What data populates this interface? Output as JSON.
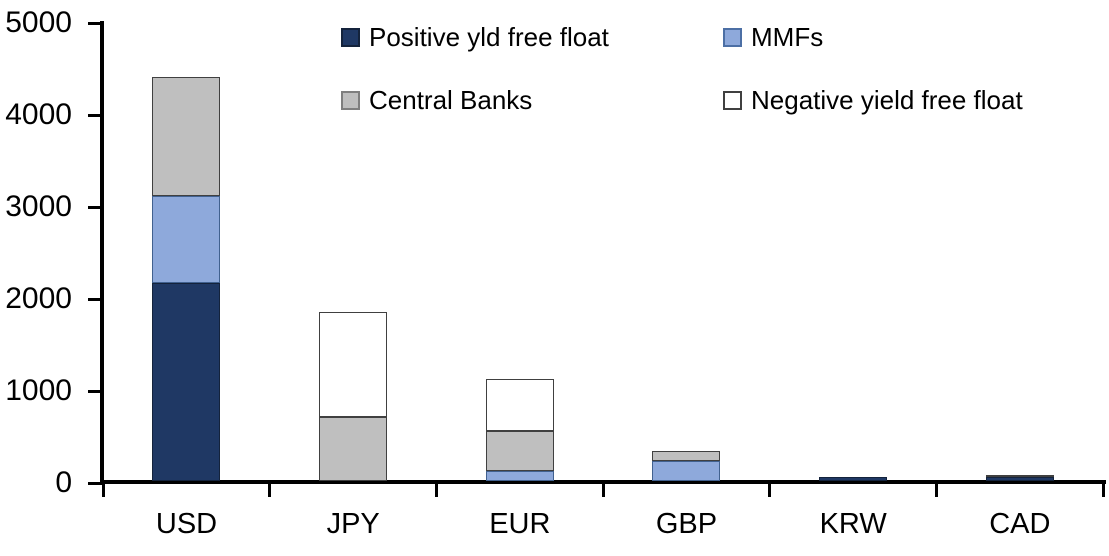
{
  "chart_data": {
    "type": "bar",
    "stacked": true,
    "title": "",
    "xlabel": "",
    "ylabel": "",
    "categories": [
      "USD",
      "JPY",
      "EUR",
      "GBP",
      "KRW",
      "CAD"
    ],
    "series": [
      {
        "name": "Positive yld free float",
        "color": "#1F3864",
        "border": "#14233C",
        "values": [
          2150,
          0,
          0,
          0,
          40,
          40
        ]
      },
      {
        "name": "MMFs",
        "color": "#8EA9DB",
        "border": "#41618F",
        "values": [
          950,
          0,
          110,
          220,
          0,
          0
        ]
      },
      {
        "name": "Central Banks",
        "color": "#BFBFBF",
        "border": "#404040",
        "values": [
          1290,
          700,
          430,
          110,
          0,
          25
        ]
      },
      {
        "name": "Negative yield free float",
        "color": "#FFFFFF",
        "border": "#404040",
        "values": [
          0,
          1140,
          570,
          0,
          0,
          0
        ]
      }
    ],
    "ylim": [
      0,
      5000
    ],
    "yticks": [
      0,
      1000,
      2000,
      3000,
      4000,
      5000
    ],
    "ytick_labels": [
      "0",
      "1000",
      "2000",
      "3000",
      "4000",
      "5000"
    ],
    "legend_position": "top",
    "legend_columns": 2,
    "grid": false,
    "background_color": "#FFFFFF",
    "axis_color": "#000000"
  }
}
